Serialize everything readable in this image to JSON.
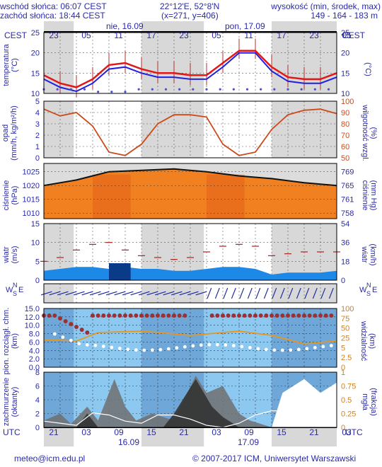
{
  "header": {
    "sunrise": "wschód słońca: 06:07 CEST",
    "sunset": "zachód słońca: 18:44 CEST",
    "coords": "22°12'E, 52°8'N",
    "grid": "(x=271,  y=406)",
    "height_title": "wysokość (min, środek, max)",
    "height_values": "149 - 164 - 183 m"
  },
  "time_axis": {
    "top_zone": "CEST",
    "bottom_zone": "UTC",
    "top_hours": [
      "23",
      "05",
      "11",
      "17",
      "23",
      "05",
      "11",
      "17",
      "23",
      "05"
    ],
    "bottom_hours": [
      "21",
      "03",
      "09",
      "15",
      "21",
      "03",
      "09",
      "15",
      "21",
      "03"
    ],
    "top_days": [
      "nie, 16.09",
      "pon, 17.09"
    ],
    "bottom_days": [
      "16.09",
      "17.09"
    ]
  },
  "panels": {
    "temperature": {
      "left_label": "temperatura",
      "left_unit": "(°C)",
      "right_label": "(°C)"
    },
    "precip": {
      "left_label": "opad",
      "left_unit": "(mm/h, kg/m²/h)",
      "right_label": "wilgotność wzgl.",
      "right_unit": "(%)"
    },
    "pressure": {
      "left_label": "ciśnienie",
      "left_unit": "(hPa)",
      "right_label": "ciśnienie",
      "right_unit": "(mm Hg)"
    },
    "wind": {
      "left_label": "wiatr",
      "left_unit": "(m/s)",
      "right_label": "wiatr",
      "right_unit": "(km/h)"
    },
    "direction": {
      "n": "N",
      "s": "S",
      "w": "W",
      "e": "E"
    },
    "visibility": {
      "left_label": "pion. rozciągł. chm.",
      "left_unit": "(km)",
      "right_label": "widzialność",
      "right_unit": "(km)"
    },
    "clouds": {
      "left_label": "zachmurzenie",
      "left_unit": "(oktanty)",
      "right_label": "mgła",
      "right_unit": "(frakcja)"
    }
  },
  "footer": {
    "email": "meteo@icm.edu.pl",
    "copyright": "© 2007-2017 ICM, Uniwersytet Warszawski"
  },
  "colors": {
    "text": "#2a2aa8",
    "night": "#d8d8d8",
    "temp_max": "#e01818",
    "temp_avg": "#2020e0",
    "humidity": "#cc4a1a",
    "pressure_fill": "#f08020",
    "wind_fill": "#1e88e6",
    "gust": "#b02020",
    "cloud_sky": "#8cc8f0"
  },
  "chart_data": [
    {
      "type": "line",
      "title": "temperatura",
      "x_hours_utc": [
        0,
        3,
        6,
        9,
        12,
        15,
        18,
        21,
        24,
        27,
        30,
        33,
        36,
        39,
        42,
        45,
        48,
        51,
        54
      ],
      "series": [
        {
          "name": "temp_max",
          "values": [
            14.5,
            12.5,
            11.5,
            13.5,
            17,
            17.5,
            16,
            15,
            15,
            14.5,
            14.5,
            17.5,
            20.5,
            20.5,
            16.5,
            14,
            13.5,
            13.5,
            15
          ]
        },
        {
          "name": "temp_avg",
          "values": [
            13.5,
            11.5,
            10.5,
            12.5,
            16,
            16.5,
            15,
            14,
            14,
            13.5,
            13.5,
            16.5,
            20,
            20,
            15.5,
            13,
            12.5,
            12.5,
            14
          ]
        }
      ],
      "ylim": [
        10,
        25
      ],
      "yticks": [
        10,
        15,
        20,
        25
      ]
    },
    {
      "type": "line",
      "title": "opad / wilgotność",
      "x_hours_utc": [
        0,
        3,
        6,
        9,
        12,
        15,
        18,
        21,
        24,
        27,
        30,
        33,
        36,
        39,
        42,
        45,
        48,
        51,
        54
      ],
      "series": [
        {
          "name": "humidity",
          "values": [
            93,
            87,
            90,
            78,
            55,
            52,
            62,
            80,
            88,
            88,
            86,
            62,
            52,
            55,
            75,
            88,
            92,
            93,
            89
          ]
        }
      ],
      "left_yticks": [
        0,
        1,
        2,
        3,
        4,
        5
      ],
      "right_yticks": [
        50,
        60,
        70,
        80,
        90,
        100
      ]
    },
    {
      "type": "area",
      "title": "ciśnienie",
      "x_hours_utc": [
        0,
        6,
        12,
        18,
        24,
        30,
        36,
        42,
        48,
        54
      ],
      "series": [
        {
          "name": "pressure",
          "values": [
            1020,
            1022,
            1025,
            1025.5,
            1026,
            1025,
            1023.5,
            1022.5,
            1021,
            1020
          ]
        }
      ],
      "ylim": [
        1008,
        1028
      ],
      "yticks": [
        1010,
        1015,
        1020,
        1025
      ],
      "right_yticks": [
        "758",
        "761",
        "765",
        "769"
      ]
    },
    {
      "type": "area",
      "title": "wiatr",
      "x_hours_utc": [
        0,
        3,
        6,
        9,
        12,
        15,
        18,
        21,
        24,
        27,
        30,
        33,
        36,
        39,
        42,
        45,
        48,
        51,
        54
      ],
      "series": [
        {
          "name": "wind",
          "values": [
            2.5,
            3,
            3.5,
            3.5,
            3,
            3.5,
            3,
            3,
            2.5,
            2.5,
            3,
            3.5,
            3.5,
            3,
            1.5,
            2,
            2,
            2,
            2.5
          ]
        },
        {
          "name": "gust",
          "values": [
            5,
            6,
            8,
            9.5,
            10,
            8,
            6.5,
            6,
            5.5,
            6,
            7.5,
            9,
            9.5,
            9,
            6.5,
            7,
            7.5,
            7.5,
            7.5
          ]
        }
      ],
      "ylim": [
        0,
        15
      ],
      "yticks": [
        0,
        5,
        10,
        15
      ],
      "right_yticks": [
        "0",
        "18",
        "36",
        "54"
      ]
    },
    {
      "type": "scatter",
      "title": "widzialność",
      "ylim": [
        0,
        15
      ],
      "yticks": [
        "0.0",
        "2.0",
        "4.0",
        "6.0",
        "8.0",
        "10.0",
        "12.0",
        "15.0"
      ],
      "right_yticks": [
        "0",
        "2.5",
        "5",
        "25",
        "50",
        "75",
        "100"
      ],
      "series": [
        {
          "name": "visibility",
          "values": [
            100,
            100,
            75,
            45,
            50,
            100,
            100,
            100,
            100,
            100,
            100,
            100,
            100,
            100,
            100,
            100,
            100,
            100,
            100
          ]
        },
        {
          "name": "cloud_depth",
          "values": [
            8,
            7,
            6,
            3,
            1,
            1.5,
            1.8,
            1.5,
            2,
            2,
            2,
            1.5,
            2,
            1,
            2,
            3,
            3,
            3,
            3
          ]
        }
      ]
    },
    {
      "type": "area",
      "title": "zachmurzenie",
      "ylim": [
        0,
        8
      ],
      "right_yticks": [
        "0",
        "0.25",
        "0.5",
        "0.75",
        "1"
      ],
      "series": [
        {
          "name": "cloud_total",
          "values": [
            3,
            2,
            1,
            7,
            6,
            3,
            2,
            6,
            6,
            4,
            1,
            0,
            2,
            6,
            8,
            8,
            8,
            6,
            2
          ]
        }
      ]
    }
  ]
}
